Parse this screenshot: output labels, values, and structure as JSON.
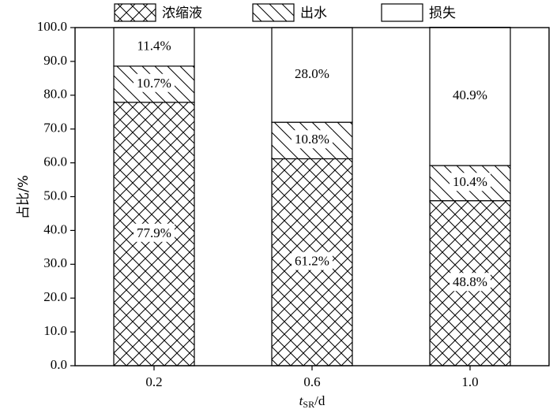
{
  "chart_data": {
    "type": "stacked_bar",
    "categories": [
      "0.2",
      "0.6",
      "1.0"
    ],
    "series": [
      {
        "name": "浓缩液",
        "hatch": "cross",
        "values": [
          77.9,
          61.2,
          48.8
        ],
        "value_labels": [
          "77.9%",
          "61.2%",
          "48.8%"
        ]
      },
      {
        "name": "出水",
        "hatch": "diagonal",
        "values": [
          10.7,
          10.8,
          10.4
        ],
        "value_labels": [
          "10.7%",
          "10.8%",
          "10.4%"
        ]
      },
      {
        "name": "损失",
        "hatch": "none",
        "values": [
          11.4,
          28.0,
          40.9
        ],
        "value_labels": [
          "11.4%",
          "28.0%",
          "40.9%"
        ]
      }
    ],
    "y_label": "占比/%",
    "x_label": {
      "italic": "t",
      "sub": "SR",
      "rest": "/d"
    },
    "ylim": [
      0,
      100
    ],
    "yticks": [
      {
        "value": 0,
        "label": "0.0"
      },
      {
        "value": 10,
        "label": "10.0"
      },
      {
        "value": 20,
        "label": "20.0"
      },
      {
        "value": 30,
        "label": "30.0"
      },
      {
        "value": 40,
        "label": "40.0"
      },
      {
        "value": 50,
        "label": "50.0"
      },
      {
        "value": 60,
        "label": "60.0"
      },
      {
        "value": 70,
        "label": "70.0"
      },
      {
        "value": 80,
        "label": "80.0"
      },
      {
        "value": 90,
        "label": "90.0"
      },
      {
        "value": 100,
        "label": "100.0"
      }
    ],
    "legend": "top"
  }
}
